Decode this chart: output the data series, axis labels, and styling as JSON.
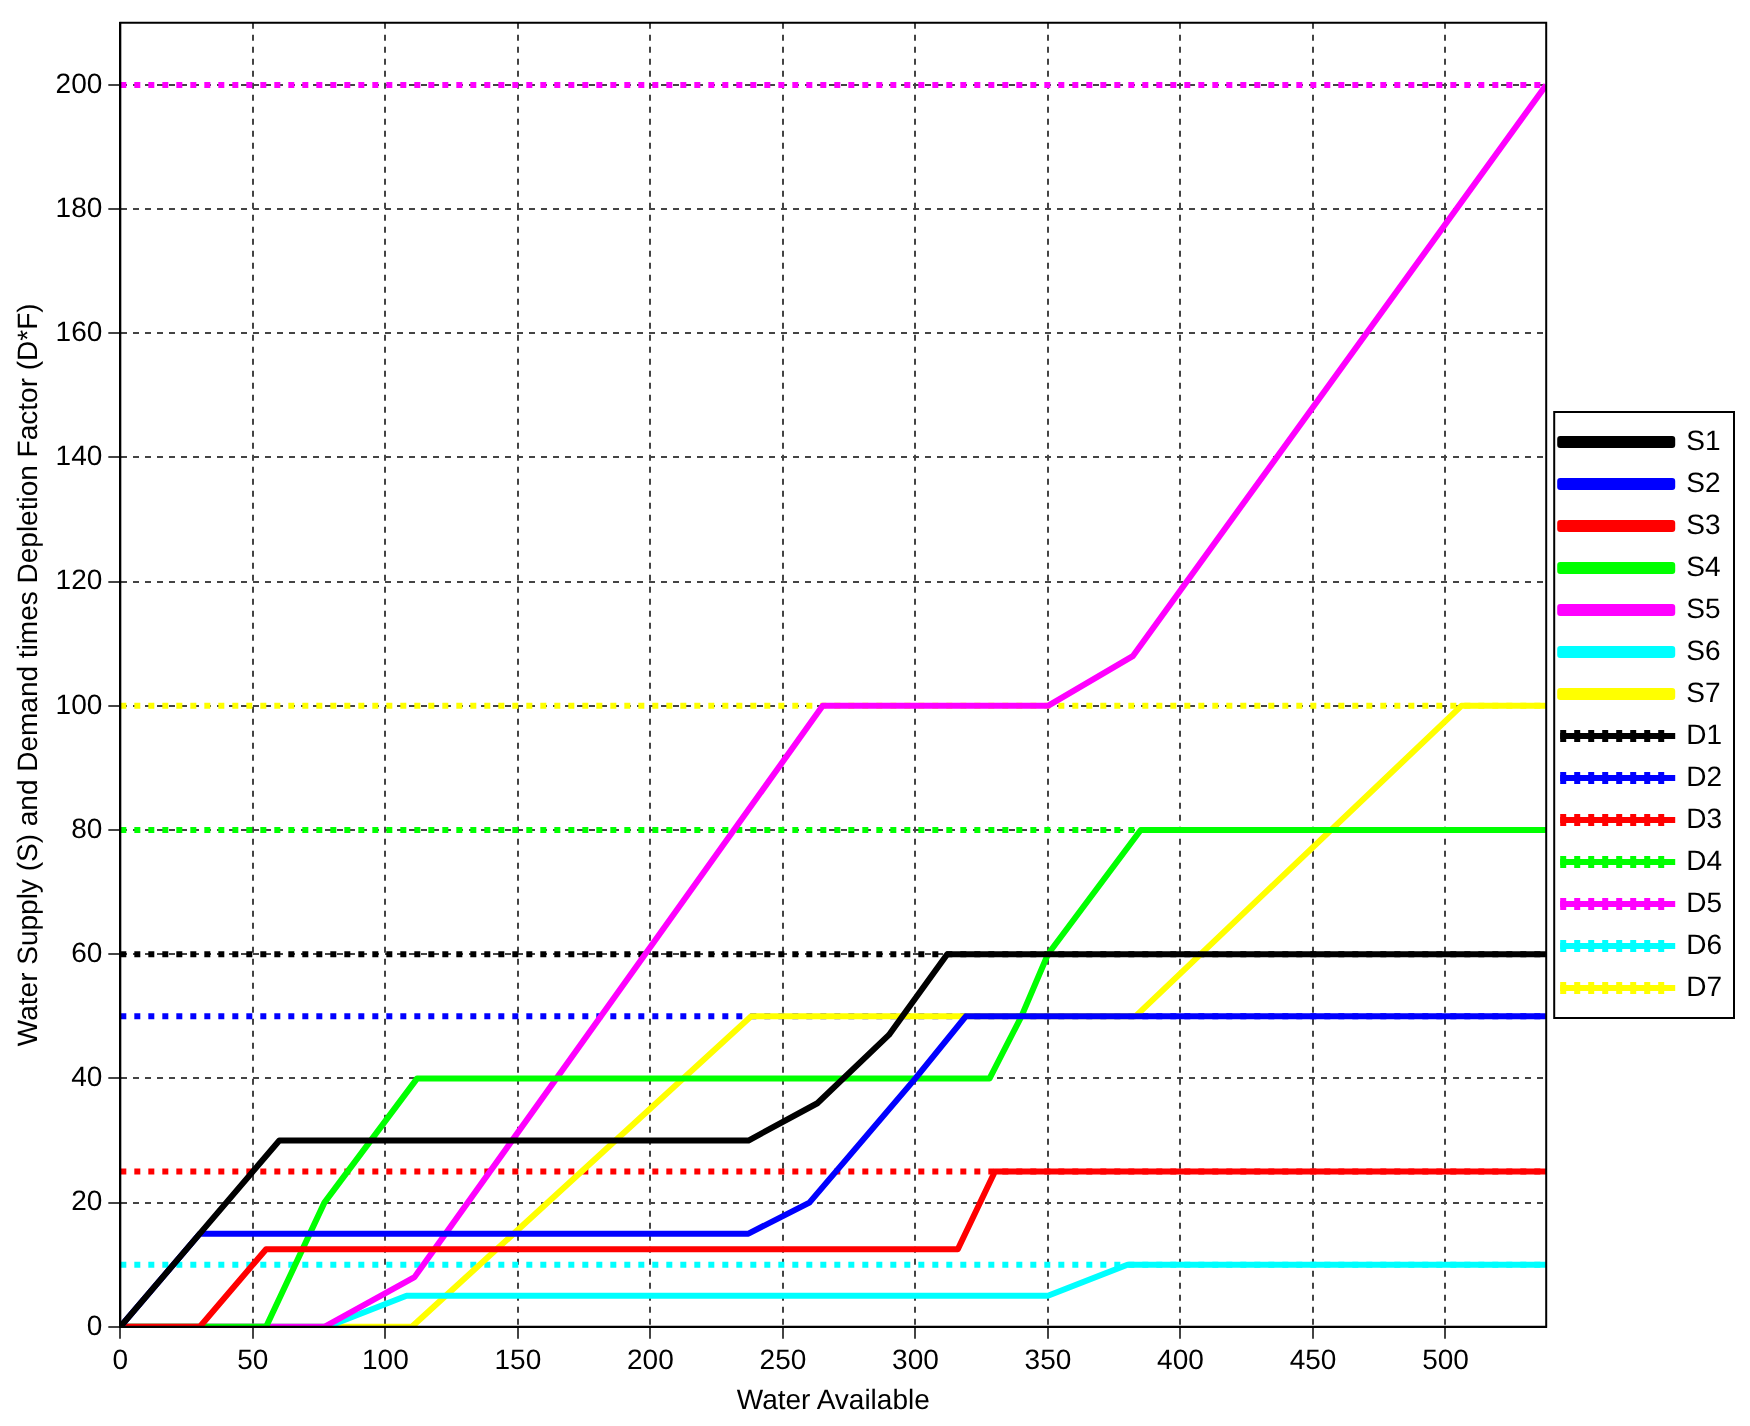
{
  "chart_data": {
    "type": "line",
    "xlabel": "Water Available",
    "ylabel": "Water Supply (S) and Demand times Depletion Factor (D*F)",
    "xlim": [
      0,
      538
    ],
    "xticks": [
      0,
      50,
      100,
      150,
      200,
      250,
      300,
      350,
      400,
      450,
      500
    ],
    "ylim": [
      0,
      210
    ],
    "yticks": [
      0,
      20,
      40,
      60,
      80,
      100,
      120,
      140,
      160,
      180,
      200
    ],
    "grid": true,
    "legend": "right",
    "marker": "none",
    "series": [
      {
        "name": "S1",
        "color": "#000000",
        "line_style": "solid",
        "x": [
          0,
          30,
          60,
          237,
          263,
          290,
          312,
          538
        ],
        "values": [
          0,
          15,
          30,
          30,
          36,
          47,
          60,
          60
        ]
      },
      {
        "name": "S2",
        "color": "#0000ff",
        "line_style": "solid",
        "x": [
          0,
          30,
          237,
          260,
          300,
          319,
          538
        ],
        "values": [
          0,
          15,
          15,
          20,
          40,
          50,
          50
        ]
      },
      {
        "name": "S3",
        "color": "#ff0000",
        "line_style": "solid",
        "x": [
          0,
          30,
          55,
          316,
          330,
          538
        ],
        "values": [
          0,
          0,
          12.5,
          12.5,
          25,
          25
        ]
      },
      {
        "name": "S4",
        "color": "#00ff00",
        "line_style": "solid",
        "x": [
          0,
          55,
          77,
          112,
          328,
          340,
          350,
          385,
          538
        ],
        "values": [
          0,
          0,
          20,
          40,
          40,
          50,
          60,
          80,
          80
        ]
      },
      {
        "name": "S5",
        "color": "#ff00ff",
        "line_style": "solid",
        "x": [
          0,
          77,
          111,
          265,
          350,
          382,
          538
        ],
        "values": [
          0,
          0,
          8,
          100,
          100,
          108,
          200
        ]
      },
      {
        "name": "S6",
        "color": "#00ffff",
        "line_style": "solid",
        "x": [
          0,
          78,
          108,
          350,
          380,
          538
        ],
        "values": [
          0,
          0,
          5,
          5,
          10,
          10
        ]
      },
      {
        "name": "S7",
        "color": "#ffff00",
        "line_style": "solid",
        "x": [
          0,
          110,
          238,
          383,
          506,
          538
        ],
        "values": [
          0,
          0,
          50,
          50,
          100,
          100
        ]
      },
      {
        "name": "D1",
        "color": "#000000",
        "line_style": "dotted",
        "x": [
          0,
          538
        ],
        "values": [
          60,
          60
        ]
      },
      {
        "name": "D2",
        "color": "#0000ff",
        "line_style": "dotted",
        "x": [
          0,
          538
        ],
        "values": [
          50,
          50
        ]
      },
      {
        "name": "D3",
        "color": "#ff0000",
        "line_style": "dotted",
        "x": [
          0,
          538
        ],
        "values": [
          25,
          25
        ]
      },
      {
        "name": "D4",
        "color": "#00ff00",
        "line_style": "dotted",
        "x": [
          0,
          538
        ],
        "values": [
          80,
          80
        ]
      },
      {
        "name": "D5",
        "color": "#ff00ff",
        "line_style": "dotted",
        "x": [
          0,
          538
        ],
        "values": [
          200,
          200
        ]
      },
      {
        "name": "D6",
        "color": "#00ffff",
        "line_style": "dotted",
        "x": [
          0,
          538
        ],
        "values": [
          10,
          10
        ]
      },
      {
        "name": "D7",
        "color": "#ffff00",
        "line_style": "dotted",
        "x": [
          0,
          538
        ],
        "values": [
          100,
          100
        ]
      }
    ]
  }
}
